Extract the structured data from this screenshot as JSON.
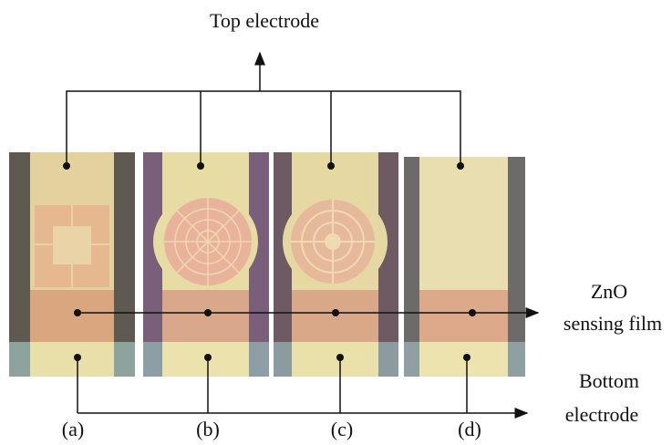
{
  "labels": {
    "top": "Top electrode",
    "zno": "ZnO",
    "sensing": "sensing film",
    "bottom": "Bottom",
    "bottom_electrode": "electrode"
  },
  "panels": [
    "(a)",
    "(b)",
    "(c)",
    "(d)"
  ]
}
